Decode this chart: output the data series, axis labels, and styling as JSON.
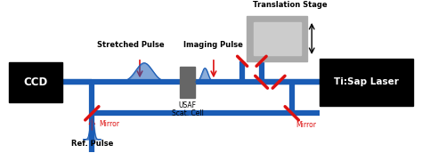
{
  "beam_color": "#1a5cb5",
  "beam_lw": 4.5,
  "mirror_color": "#dd1111",
  "mirror_lw": 2.5,
  "arrow_color": "#dd1111",
  "ccd_text": "CCD",
  "laser_text": "Ti:Sap Laser",
  "usaf_label": "USAF",
  "scat_label": "Scat. Cell",
  "trans_label": "Translation Stage",
  "imaging_label": "Imaging Pulse",
  "stretched_label": "Stretched Pulse",
  "ref_label": "Ref. Pulse",
  "mirror_label1": "Mirror",
  "mirror_label2": "Mirror",
  "figsize": [
    4.74,
    1.81
  ],
  "dpi": 100
}
